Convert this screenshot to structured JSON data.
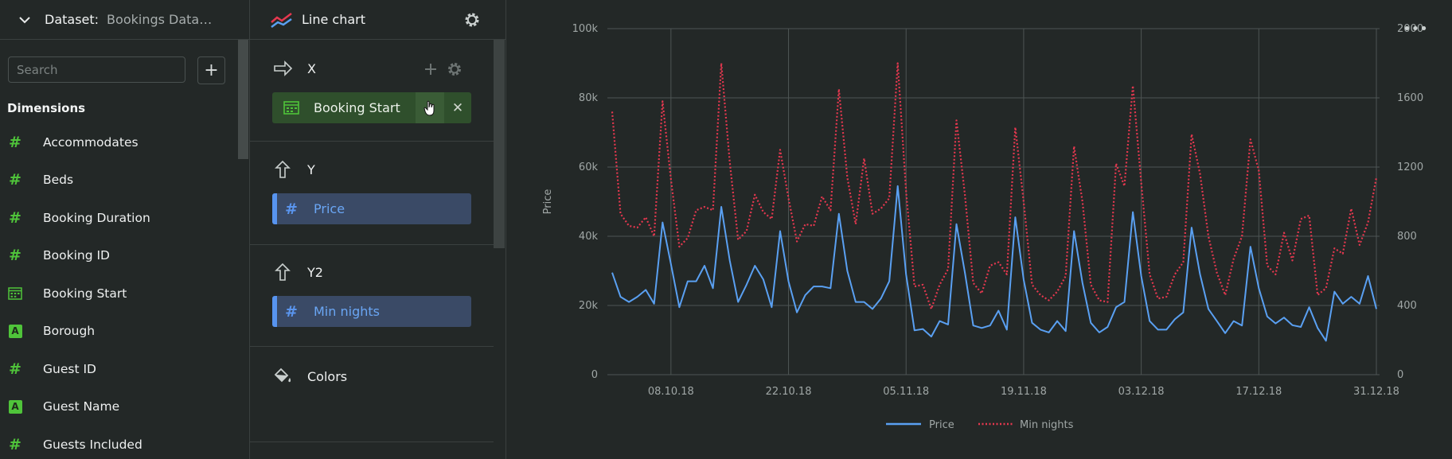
{
  "dataset": {
    "label": "Dataset:",
    "name": "Bookings Data…"
  },
  "left_panel": {
    "search_placeholder": "Search",
    "add_label": "+",
    "dimensions_title": "Dimensions",
    "fields": [
      {
        "name": "Accommodates",
        "type": "number"
      },
      {
        "name": "Beds",
        "type": "number"
      },
      {
        "name": "Booking Duration",
        "type": "number"
      },
      {
        "name": "Booking ID",
        "type": "number"
      },
      {
        "name": "Booking Start",
        "type": "date"
      },
      {
        "name": "Borough",
        "type": "string"
      },
      {
        "name": "Guest ID",
        "type": "number"
      },
      {
        "name": "Guest Name",
        "type": "string"
      },
      {
        "name": "Guests Included",
        "type": "number"
      }
    ]
  },
  "config_panel": {
    "chart_type": "Line chart",
    "x": {
      "label": "X",
      "field": "Booking Start"
    },
    "y": {
      "label": "Y",
      "field": "Price"
    },
    "y2": {
      "label": "Y2",
      "field": "Min nights"
    },
    "colors": {
      "label": "Colors"
    }
  },
  "colors": {
    "accent_green": "#4fc43a",
    "price_line": "#5aa0f2",
    "minnights_line": "#e5384f",
    "background": "#232827"
  },
  "chart_data": {
    "type": "line",
    "x_ticks": [
      "08.10.18",
      "22.10.18",
      "05.11.18",
      "19.11.18",
      "03.12.18",
      "17.12.18",
      "31.12.18"
    ],
    "ylabel": "Price",
    "y_ticks": [
      "0",
      "20k",
      "40k",
      "60k",
      "80k",
      "100k"
    ],
    "ylim": [
      0,
      100000
    ],
    "y2_ticks": [
      "0",
      "400",
      "800",
      "1200",
      "1600",
      "2000"
    ],
    "y2lim": [
      0,
      2000
    ],
    "x_start": "2018-10-01",
    "x_end": "2018-12-31",
    "grid": true,
    "legend_position": "bottom",
    "series": [
      {
        "name": "Price",
        "axis": "left",
        "style": "solid",
        "color": "#5aa0f2",
        "values": [
          29500,
          22500,
          21000,
          22500,
          24500,
          20500,
          44000,
          32000,
          19500,
          27000,
          27000,
          31500,
          25000,
          48500,
          33000,
          21000,
          26000,
          31500,
          27500,
          19500,
          41500,
          27000,
          18000,
          23000,
          25500,
          25500,
          25000,
          46500,
          30000,
          21000,
          21000,
          19000,
          22000,
          27000,
          54500,
          29000,
          12800,
          13200,
          11000,
          15500,
          14500,
          43500,
          29500,
          14200,
          13500,
          14200,
          18500,
          13000,
          45500,
          27500,
          15000,
          13000,
          12200,
          15500,
          12600,
          41500,
          26500,
          15000,
          12200,
          13800,
          19500,
          21000,
          47000,
          28500,
          15500,
          13000,
          13000,
          16000,
          18000,
          42500,
          29000,
          19000,
          15500,
          12000,
          15500,
          14200,
          37000,
          25000,
          16800,
          14800,
          16500,
          14300,
          13800,
          19500,
          13500,
          9800,
          24000,
          20500,
          22500,
          20500,
          28500,
          19000
        ]
      },
      {
        "name": "Min nights",
        "axis": "right",
        "style": "dotted",
        "color": "#e5384f",
        "values": [
          1520,
          930,
          860,
          850,
          910,
          800,
          1580,
          1130,
          740,
          790,
          950,
          970,
          950,
          1800,
          1230,
          780,
          830,
          1040,
          940,
          900,
          1300,
          1020,
          770,
          870,
          860,
          1030,
          950,
          1650,
          1140,
          870,
          1250,
          930,
          960,
          1020,
          1800,
          1060,
          510,
          520,
          380,
          520,
          610,
          1470,
          1040,
          530,
          470,
          630,
          650,
          580,
          1430,
          1000,
          520,
          460,
          430,
          480,
          570,
          1320,
          1000,
          520,
          430,
          420,
          1220,
          1090,
          1670,
          1110,
          580,
          440,
          450,
          580,
          650,
          1390,
          1160,
          800,
          590,
          460,
          670,
          800,
          1360,
          1180,
          630,
          580,
          820,
          660,
          900,
          920,
          460,
          500,
          730,
          700,
          960,
          750,
          880,
          1140
        ]
      }
    ],
    "legend": [
      "Price",
      "Min nights"
    ]
  }
}
